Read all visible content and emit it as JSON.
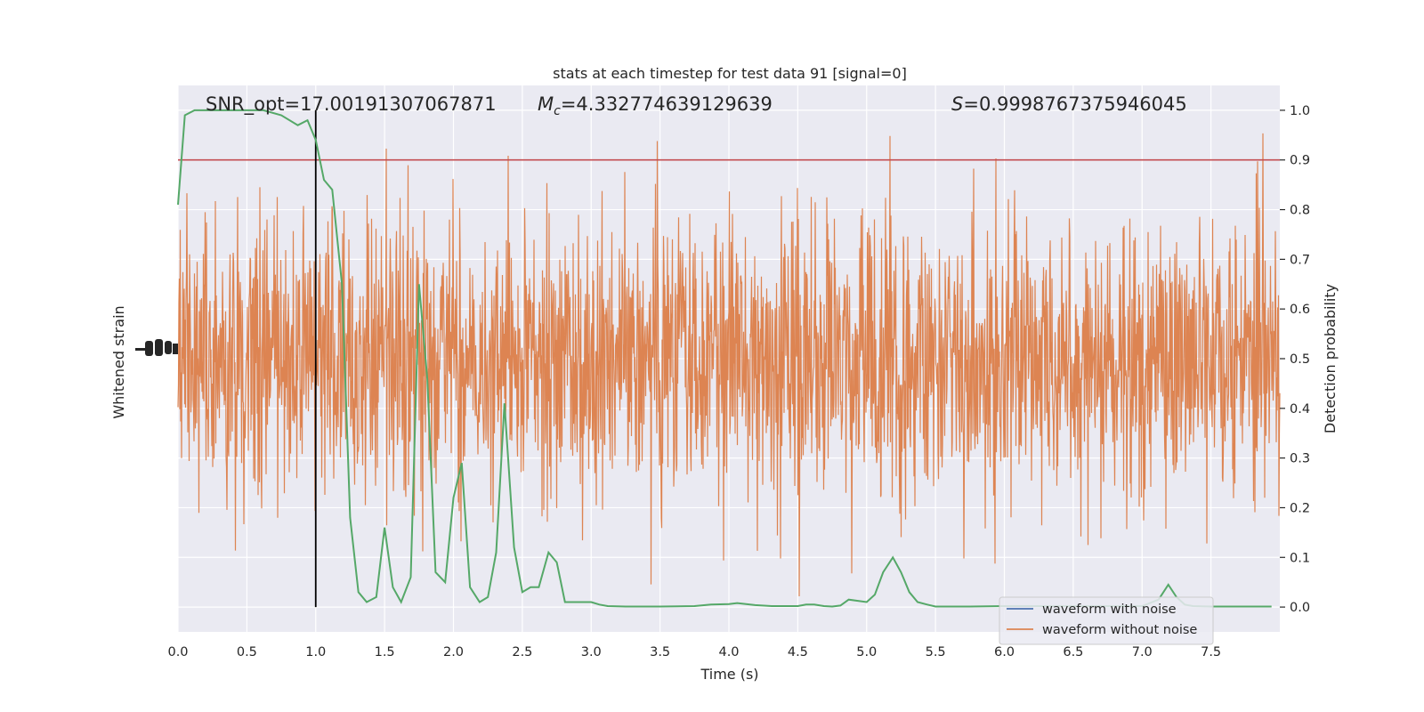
{
  "chart_data": {
    "type": "line",
    "title": "stats at each timestep for test data 91 [signal=0]",
    "xlabel": "Time (s)",
    "ylabel_left": "Whitened strain",
    "ylabel_right": "Detection probability",
    "xlim": [
      0,
      8
    ],
    "ylim_right": [
      -0.05,
      1.05
    ],
    "x_ticks": [
      "0.0",
      "0.5",
      "1.0",
      "1.5",
      "2.0",
      "2.5",
      "3.0",
      "3.5",
      "4.0",
      "4.5",
      "5.0",
      "5.5",
      "6.0",
      "6.5",
      "7.0",
      "7.5"
    ],
    "x_tick_values": [
      0,
      0.5,
      1,
      1.5,
      2,
      2.5,
      3,
      3.5,
      4,
      4.5,
      5,
      5.5,
      6,
      6.5,
      7,
      7.5
    ],
    "y_right_ticks": [
      "0.0",
      "0.1",
      "0.2",
      "0.3",
      "0.4",
      "0.5",
      "0.6",
      "0.7",
      "0.8",
      "0.9",
      "1.0"
    ],
    "y_right_tick_values": [
      0,
      0.1,
      0.2,
      0.3,
      0.4,
      0.5,
      0.6,
      0.7,
      0.8,
      0.9,
      1.0
    ],
    "grid": true,
    "legend_position": "bottom-right",
    "annotations": {
      "snr": "SNR_opt=17.00191307067871",
      "mc_symbol": "M",
      "mc_sub": "c",
      "mc_value": "=4.332774639129639",
      "s_symbol": "S",
      "s_value": "=0.9998767375946045"
    },
    "threshold": 0.9,
    "marker_time": 1.0,
    "series": [
      {
        "name": "waveform with noise",
        "color": "#4c72b0",
        "kind": "strain"
      },
      {
        "name": "waveform without noise",
        "color": "#dd8452",
        "kind": "strain"
      },
      {
        "name": "",
        "color": "#55a868",
        "kind": "probability",
        "x": [
          0.0,
          0.05,
          0.12,
          0.25,
          0.5,
          0.62,
          0.75,
          0.87,
          0.94,
          1.0,
          1.06,
          1.12,
          1.19,
          1.25,
          1.31,
          1.37,
          1.44,
          1.5,
          1.56,
          1.62,
          1.69,
          1.75,
          1.81,
          1.87,
          1.94,
          2.0,
          2.06,
          2.12,
          2.19,
          2.25,
          2.31,
          2.37,
          2.44,
          2.5,
          2.56,
          2.62,
          2.69,
          2.75,
          2.81,
          2.87,
          2.94,
          3.0,
          3.06,
          3.12,
          3.25,
          3.5,
          3.75,
          3.87,
          4.0,
          4.06,
          4.19,
          4.31,
          4.5,
          4.56,
          4.62,
          4.69,
          4.75,
          4.81,
          4.87,
          5.0,
          5.06,
          5.12,
          5.19,
          5.25,
          5.31,
          5.37,
          5.44,
          5.5,
          5.56,
          5.75,
          6.0,
          6.5,
          7.0,
          7.12,
          7.19,
          7.25,
          7.31,
          7.37,
          7.5,
          7.75,
          7.94
        ],
        "y": [
          0.81,
          0.99,
          1.0,
          1.0,
          1.0,
          1.0,
          0.99,
          0.97,
          0.98,
          0.94,
          0.86,
          0.84,
          0.65,
          0.18,
          0.03,
          0.01,
          0.02,
          0.16,
          0.04,
          0.01,
          0.06,
          0.65,
          0.46,
          0.07,
          0.05,
          0.22,
          0.29,
          0.04,
          0.01,
          0.02,
          0.11,
          0.41,
          0.12,
          0.03,
          0.04,
          0.04,
          0.11,
          0.09,
          0.01,
          0.01,
          0.01,
          0.01,
          0.005,
          0.002,
          0.001,
          0.001,
          0.002,
          0.005,
          0.006,
          0.008,
          0.004,
          0.002,
          0.002,
          0.005,
          0.005,
          0.002,
          0.001,
          0.003,
          0.015,
          0.01,
          0.025,
          0.07,
          0.1,
          0.07,
          0.03,
          0.01,
          0.005,
          0.001,
          0.001,
          0.001,
          0.002,
          0.002,
          0.002,
          0.015,
          0.045,
          0.02,
          0.005,
          0.002,
          0.001,
          0.001,
          0.001
        ]
      }
    ]
  }
}
